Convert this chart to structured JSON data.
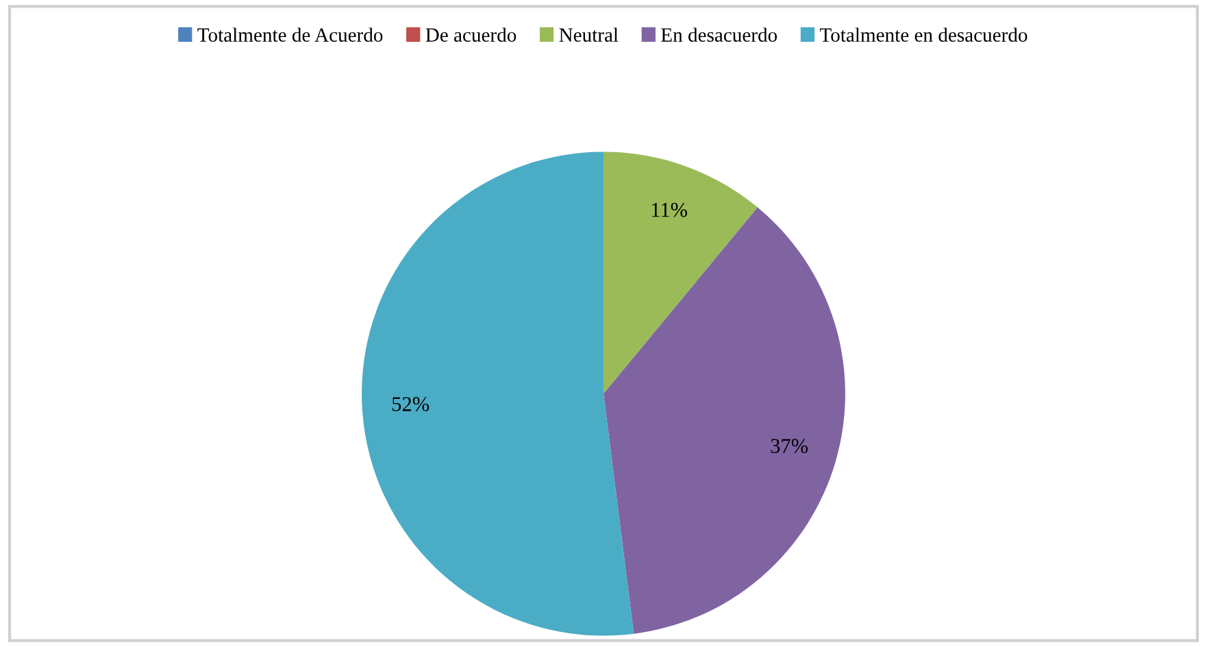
{
  "chart_data": {
    "type": "pie",
    "categories": [
      "Totalmente de Acuerdo",
      "De acuerdo",
      "Neutral",
      "En desacuerdo",
      "Totalmente en desacuerdo"
    ],
    "values": [
      0,
      0,
      11,
      37,
      52
    ],
    "colors": [
      "#4f81bd",
      "#c0504d",
      "#9bbb59",
      "#8064a2",
      "#4bacc6"
    ],
    "value_labels": [
      null,
      null,
      "11%",
      "37%",
      "52%"
    ],
    "legend": "top"
  }
}
